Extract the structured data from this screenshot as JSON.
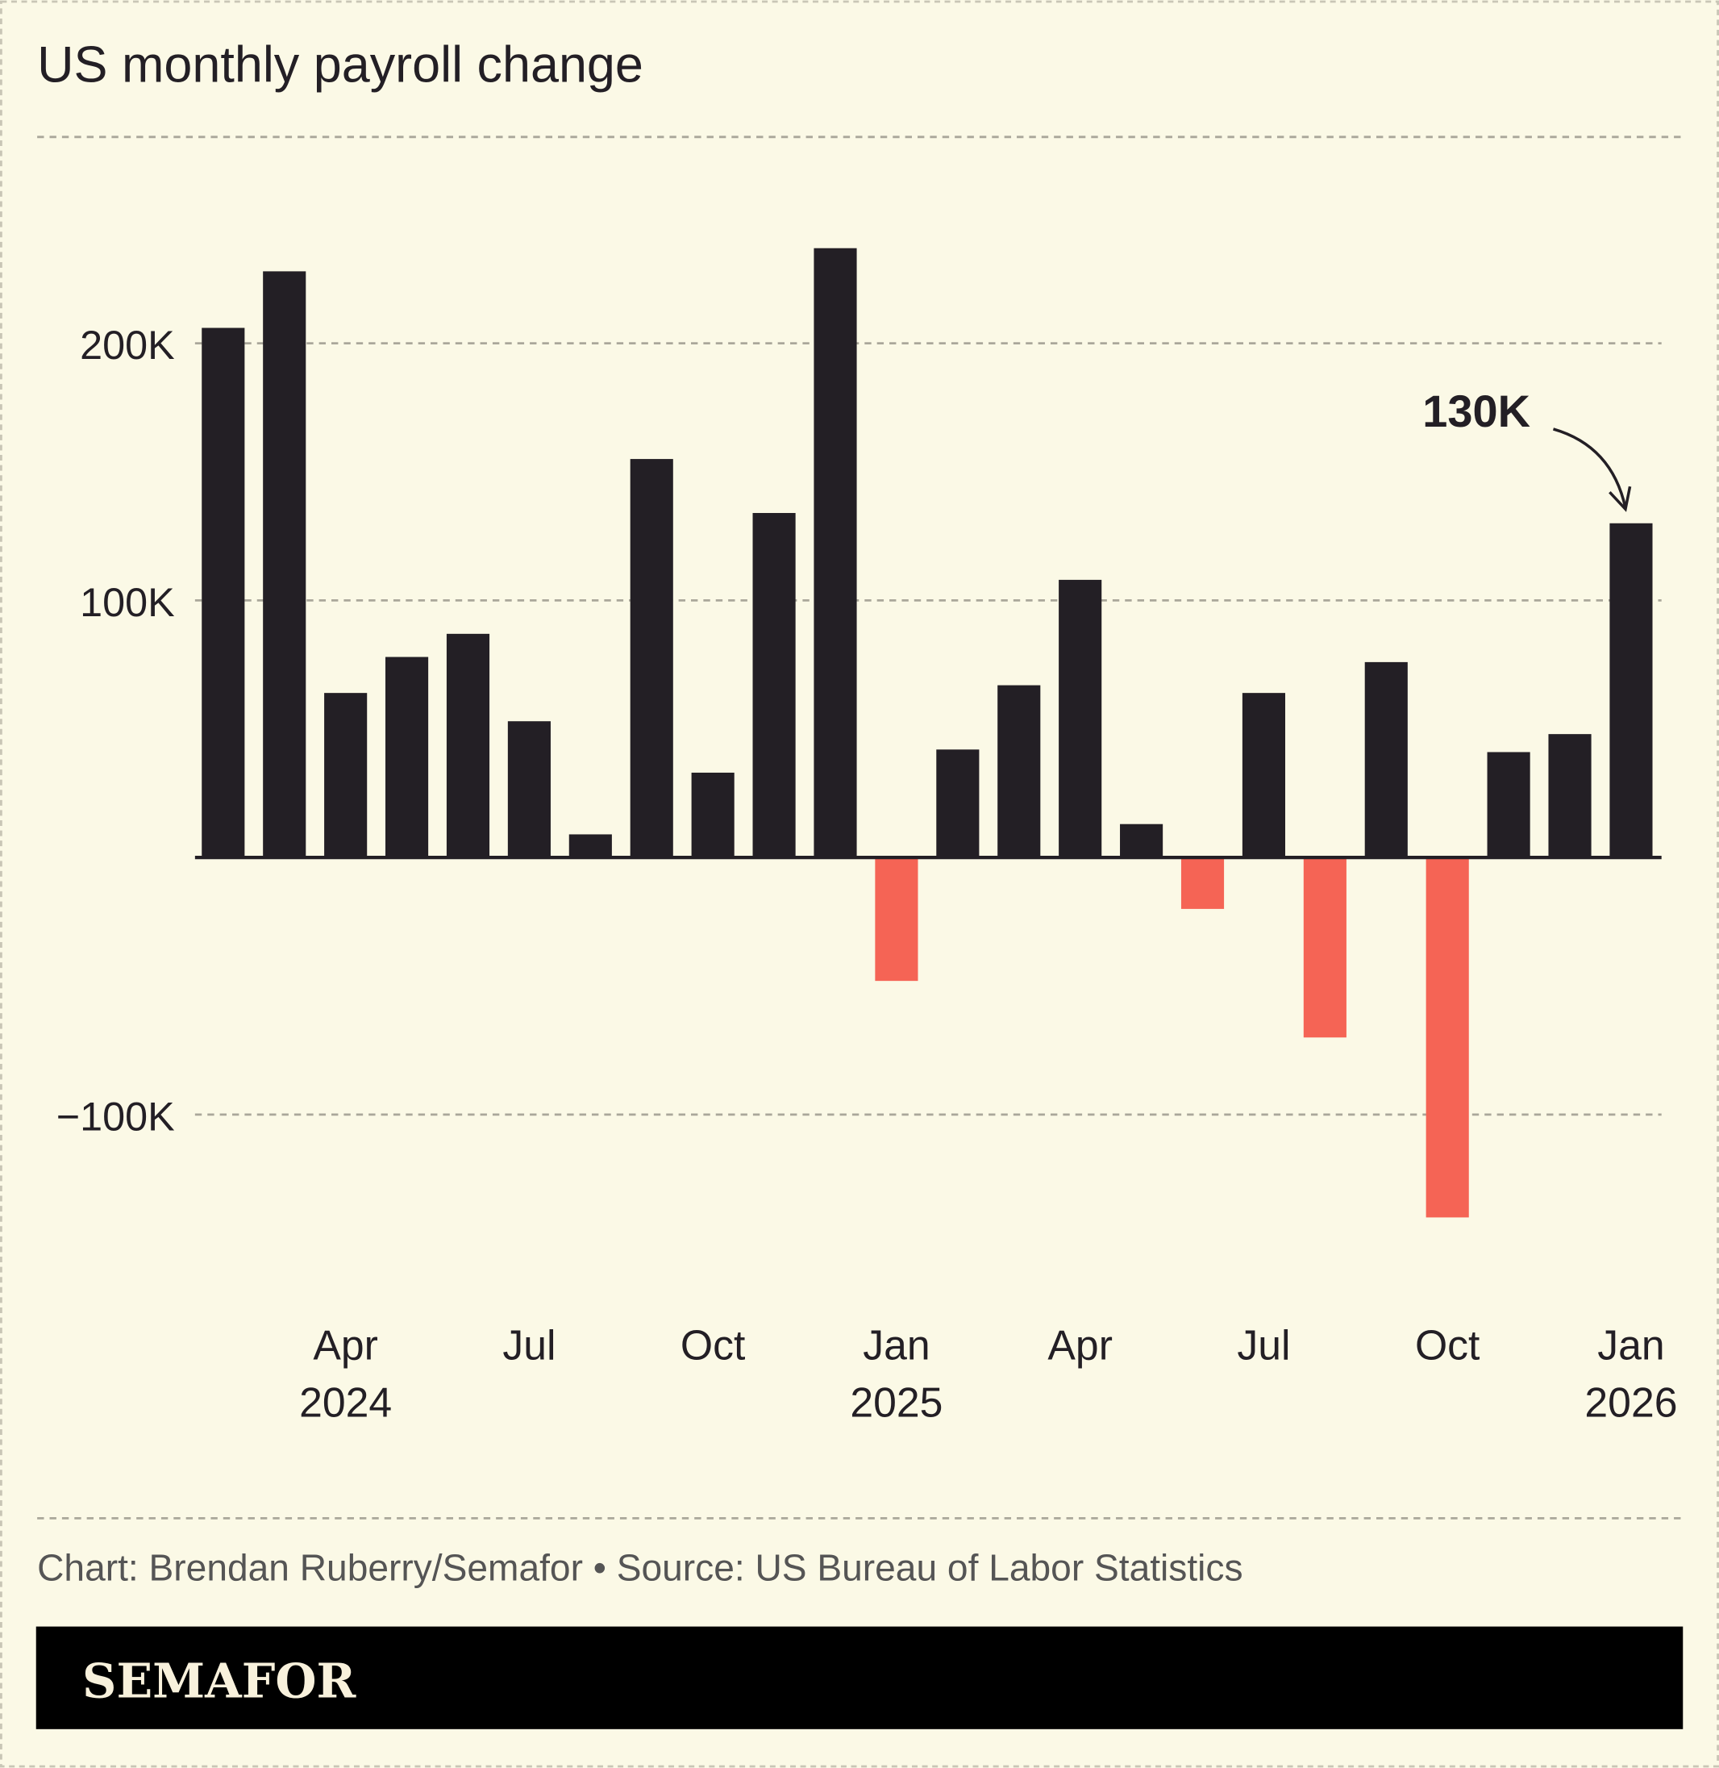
{
  "title": "US monthly payroll change",
  "footer": {
    "credit": "Chart: Brendan Ruberry/Semafor • Source: US Bureau of Labor Statistics",
    "brand": "SEMAFOR"
  },
  "colors": {
    "background": "#fbf9e6",
    "positive": "#231f25",
    "negative": "#f56455",
    "brand_bar": "#000000",
    "brand_text": "#f8f1dc"
  },
  "chart_data": {
    "type": "bar",
    "title": "US monthly payroll change",
    "categories": [
      "Feb 2024",
      "Mar 2024",
      "Apr 2024",
      "May 2024",
      "Jun 2024",
      "Jul 2024",
      "Aug 2024",
      "Sep 2024",
      "Oct 2024",
      "Nov 2024",
      "Dec 2024",
      "Jan 2025",
      "Feb 2025",
      "Mar 2025",
      "Apr 2025",
      "May 2025",
      "Jun 2025",
      "Jul 2025",
      "Aug 2025",
      "Sep 2025",
      "Oct 2025",
      "Nov 2025",
      "Dec 2025",
      "Jan 2026"
    ],
    "values": [
      206,
      228,
      64,
      78,
      87,
      53,
      9,
      155,
      33,
      134,
      237,
      -48,
      42,
      67,
      108,
      13,
      -20,
      64,
      -70,
      76,
      -140,
      41,
      48,
      130
    ],
    "unit": "thousands",
    "ylim": [
      -150,
      260
    ],
    "yticks": [
      {
        "value": 200,
        "label": "200K"
      },
      {
        "value": 100,
        "label": "100K"
      },
      {
        "value": -100,
        "label": "−100K"
      }
    ],
    "xticks": [
      {
        "index": 2,
        "label": "Apr",
        "sublabel": "2024"
      },
      {
        "index": 5,
        "label": "Jul",
        "sublabel": ""
      },
      {
        "index": 8,
        "label": "Oct",
        "sublabel": ""
      },
      {
        "index": 11,
        "label": "Jan",
        "sublabel": "2025"
      },
      {
        "index": 14,
        "label": "Apr",
        "sublabel": ""
      },
      {
        "index": 17,
        "label": "Jul",
        "sublabel": ""
      },
      {
        "index": 20,
        "label": "Oct",
        "sublabel": ""
      },
      {
        "index": 23,
        "label": "Jan",
        "sublabel": "2026"
      }
    ],
    "grid": true,
    "annotation": {
      "index": 23,
      "label": "130K"
    }
  }
}
